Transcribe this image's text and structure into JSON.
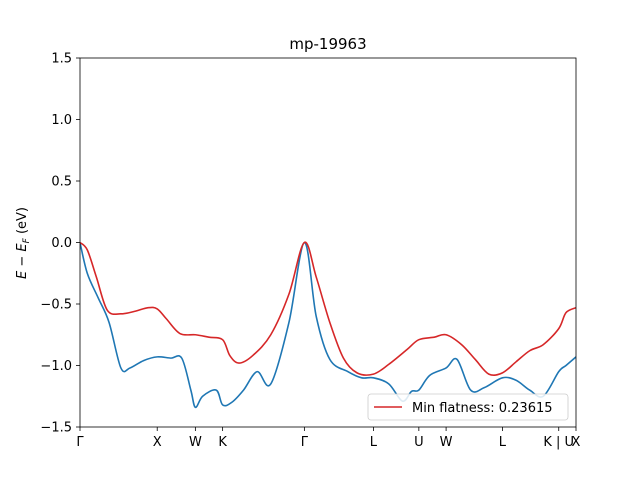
{
  "chart_data": {
    "type": "line",
    "title": "mp-19963",
    "xlabel": "",
    "ylabel": "E − E_F (eV)",
    "ylim": [
      -1.5,
      1.5
    ],
    "yticks": [
      1.5,
      1.0,
      0.5,
      0.0,
      -0.5,
      -1.0,
      -1.5
    ],
    "ytick_labels": [
      "1.5",
      "1.0",
      "0.5",
      "0.0",
      "−0.5",
      "−1.0",
      "−1.5"
    ],
    "xlim": [
      0,
      5.46
    ],
    "xticks": [
      0.0,
      0.85,
      1.27,
      1.57,
      2.47,
      3.23,
      3.73,
      4.03,
      4.65,
      5.27,
      5.46
    ],
    "xtick_labels": [
      "Γ",
      "X",
      "W",
      "K",
      "Γ",
      "L",
      "U",
      "W",
      "L",
      "K | U",
      "X"
    ],
    "grid": false,
    "legend": {
      "position": "lower-right",
      "entries": [
        "Min flatness: 0.23615"
      ]
    },
    "colors": {
      "red_series": "#d62728",
      "blue_series": "#1f77b4"
    },
    "series": [
      {
        "name": "Min flatness: 0.23615",
        "color": "#d62728",
        "x": [
          0.0,
          0.08,
          0.18,
          0.3,
          0.45,
          0.6,
          0.75,
          0.85,
          0.95,
          1.1,
          1.27,
          1.42,
          1.57,
          1.65,
          1.75,
          1.9,
          2.1,
          2.3,
          2.47,
          2.6,
          2.75,
          2.9,
          3.05,
          3.23,
          3.4,
          3.6,
          3.73,
          3.9,
          4.03,
          4.2,
          4.35,
          4.5,
          4.65,
          4.8,
          4.95,
          5.1,
          5.27,
          5.35,
          5.46
        ],
        "y": [
          0.0,
          -0.06,
          -0.28,
          -0.55,
          -0.58,
          -0.56,
          -0.53,
          -0.54,
          -0.62,
          -0.74,
          -0.75,
          -0.77,
          -0.79,
          -0.92,
          -0.98,
          -0.92,
          -0.75,
          -0.42,
          0.0,
          -0.28,
          -0.65,
          -0.94,
          -1.06,
          -1.07,
          -0.99,
          -0.87,
          -0.79,
          -0.77,
          -0.75,
          -0.83,
          -0.95,
          -1.07,
          -1.06,
          -0.97,
          -0.88,
          -0.83,
          -0.7,
          -0.57,
          -0.53
        ]
      },
      {
        "name": "",
        "color": "#1f77b4",
        "x": [
          0.0,
          0.08,
          0.2,
          0.32,
          0.45,
          0.55,
          0.7,
          0.85,
          1.0,
          1.12,
          1.22,
          1.27,
          1.35,
          1.5,
          1.57,
          1.67,
          1.8,
          1.95,
          2.1,
          2.3,
          2.47,
          2.6,
          2.75,
          2.95,
          3.1,
          3.23,
          3.4,
          3.55,
          3.65,
          3.73,
          3.85,
          4.03,
          4.15,
          4.3,
          4.45,
          4.65,
          4.8,
          4.95,
          5.1,
          5.27,
          5.35,
          5.46
        ],
        "y": [
          0.0,
          -0.25,
          -0.45,
          -0.65,
          -1.02,
          -1.02,
          -0.96,
          -0.93,
          -0.94,
          -0.94,
          -1.2,
          -1.34,
          -1.25,
          -1.2,
          -1.32,
          -1.3,
          -1.2,
          -1.05,
          -1.15,
          -0.65,
          0.0,
          -0.6,
          -0.95,
          -1.05,
          -1.1,
          -1.1,
          -1.15,
          -1.29,
          -1.21,
          -1.2,
          -1.08,
          -1.02,
          -0.95,
          -1.2,
          -1.18,
          -1.1,
          -1.12,
          -1.2,
          -1.25,
          -1.05,
          -1.0,
          -0.93
        ]
      }
    ]
  }
}
